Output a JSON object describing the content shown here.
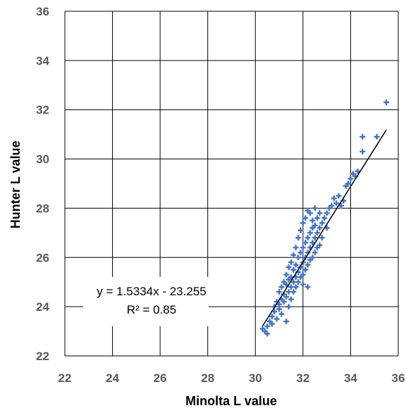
{
  "chart_data": {
    "type": "scatter",
    "title": "",
    "xlabel": "Minolta L value",
    "ylabel": "Hunter L value",
    "xlim": [
      22,
      36
    ],
    "ylim": [
      22,
      36
    ],
    "xticks": [
      "22",
      "24",
      "26",
      "28",
      "30",
      "32",
      "34",
      "36"
    ],
    "yticks": [
      "22",
      "24",
      "26",
      "28",
      "30",
      "32",
      "34",
      "36"
    ],
    "grid": true,
    "marker_color": "#4472C4",
    "trendline": {
      "slope": 1.5334,
      "intercept": -23.255,
      "x_range": [
        30.3,
        35.5
      ],
      "color": "#000000",
      "equation_label": "y = 1.5334x - 23.255",
      "r2_label": "R² = 0.85"
    },
    "series": [
      {
        "points": [
          [
            30.3,
            23.1
          ],
          [
            30.4,
            23.0
          ],
          [
            30.5,
            23.2
          ],
          [
            30.5,
            22.9
          ],
          [
            30.6,
            23.4
          ],
          [
            30.7,
            23.6
          ],
          [
            30.7,
            23.3
          ],
          [
            30.8,
            23.8
          ],
          [
            30.8,
            24.0
          ],
          [
            30.9,
            23.5
          ],
          [
            30.9,
            24.2
          ],
          [
            31.0,
            24.1
          ],
          [
            31.0,
            24.6
          ],
          [
            31.0,
            23.9
          ],
          [
            31.1,
            24.3
          ],
          [
            31.1,
            24.8
          ],
          [
            31.1,
            23.7
          ],
          [
            31.2,
            24.5
          ],
          [
            31.2,
            25.0
          ],
          [
            31.2,
            24.2
          ],
          [
            31.3,
            24.4
          ],
          [
            31.3,
            24.9
          ],
          [
            31.3,
            25.3
          ],
          [
            31.3,
            23.4
          ],
          [
            31.4,
            24.6
          ],
          [
            31.4,
            25.1
          ],
          [
            31.4,
            24.0
          ],
          [
            31.4,
            25.6
          ],
          [
            31.5,
            24.8
          ],
          [
            31.5,
            25.2
          ],
          [
            31.5,
            24.3
          ],
          [
            31.5,
            25.8
          ],
          [
            31.6,
            25.0
          ],
          [
            31.6,
            25.5
          ],
          [
            31.6,
            24.6
          ],
          [
            31.6,
            26.1
          ],
          [
            31.7,
            25.2
          ],
          [
            31.7,
            25.7
          ],
          [
            31.7,
            24.8
          ],
          [
            31.7,
            26.4
          ],
          [
            31.8,
            25.4
          ],
          [
            31.8,
            26.0
          ],
          [
            31.8,
            25.0
          ],
          [
            31.8,
            26.8
          ],
          [
            31.9,
            25.6
          ],
          [
            31.9,
            26.2
          ],
          [
            31.9,
            25.2
          ],
          [
            31.9,
            27.1
          ],
          [
            32.0,
            25.8
          ],
          [
            32.0,
            26.4
          ],
          [
            32.0,
            25.3
          ],
          [
            32.0,
            27.4
          ],
          [
            32.0,
            24.9
          ],
          [
            32.1,
            26.0
          ],
          [
            32.1,
            26.6
          ],
          [
            32.1,
            25.5
          ],
          [
            32.1,
            27.6
          ],
          [
            32.2,
            26.2
          ],
          [
            32.2,
            26.8
          ],
          [
            32.2,
            25.7
          ],
          [
            32.2,
            27.9
          ],
          [
            32.2,
            24.8
          ],
          [
            32.3,
            26.4
          ],
          [
            32.3,
            27.0
          ],
          [
            32.3,
            25.9
          ],
          [
            32.3,
            27.8
          ],
          [
            32.4,
            26.6
          ],
          [
            32.4,
            27.2
          ],
          [
            32.4,
            26.0
          ],
          [
            32.4,
            27.5
          ],
          [
            32.5,
            26.8
          ],
          [
            32.5,
            27.3
          ],
          [
            32.5,
            26.2
          ],
          [
            32.5,
            28.0
          ],
          [
            32.6,
            27.0
          ],
          [
            32.6,
            26.4
          ],
          [
            32.6,
            27.6
          ],
          [
            32.7,
            27.2
          ],
          [
            32.7,
            26.5
          ],
          [
            32.7,
            27.8
          ],
          [
            32.8,
            27.4
          ],
          [
            32.8,
            26.8
          ],
          [
            32.9,
            27.6
          ],
          [
            33.0,
            27.8
          ],
          [
            33.0,
            27.2
          ],
          [
            33.1,
            28.0
          ],
          [
            33.2,
            28.1
          ],
          [
            33.3,
            28.4
          ],
          [
            33.4,
            28.2
          ],
          [
            33.5,
            28.5
          ],
          [
            33.6,
            28.1
          ],
          [
            33.7,
            28.3
          ],
          [
            33.8,
            28.9
          ],
          [
            33.9,
            29.0
          ],
          [
            34.0,
            29.2
          ],
          [
            34.1,
            29.4
          ],
          [
            34.2,
            29.3
          ],
          [
            34.3,
            29.5
          ],
          [
            34.5,
            30.3
          ],
          [
            34.5,
            30.9
          ],
          [
            35.1,
            30.9
          ],
          [
            35.5,
            32.3
          ]
        ]
      }
    ]
  }
}
